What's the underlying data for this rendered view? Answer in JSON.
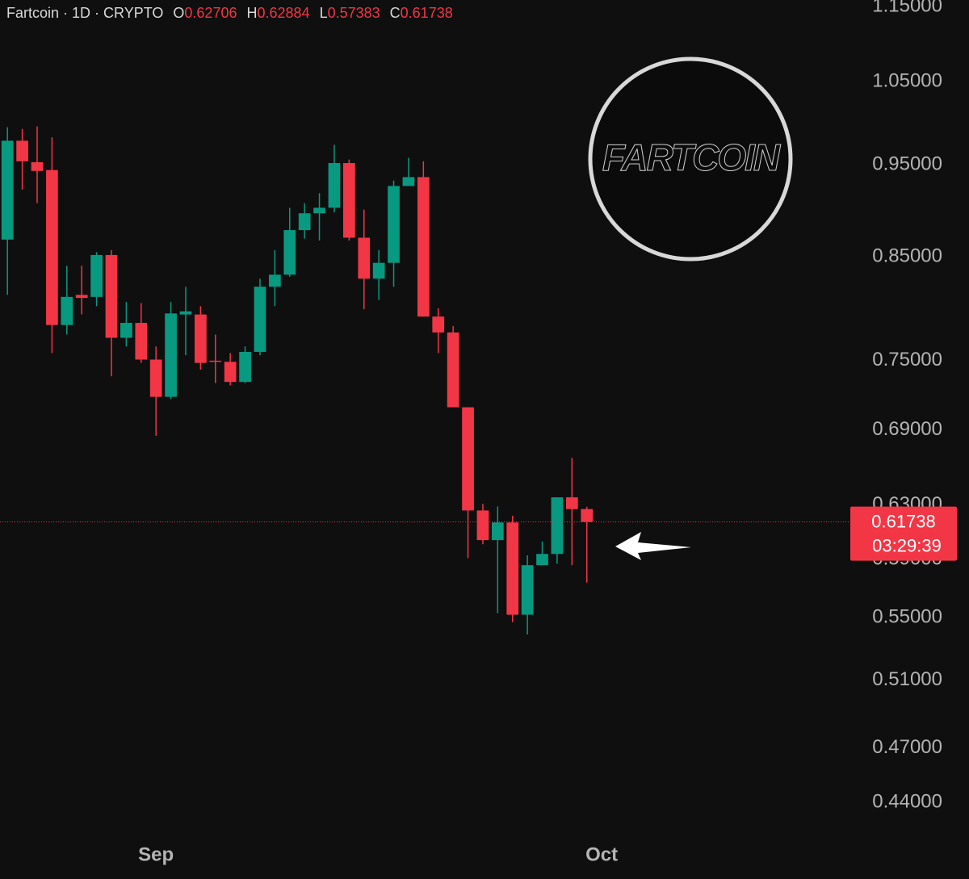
{
  "chart_data": {
    "type": "candlestick",
    "symbol": "Fartcoin · 1D · CRYPTO",
    "ohlc_labels": [
      "O",
      "H",
      "L",
      "C"
    ],
    "countdown": "03:29:39",
    "logo_text": "FARTCOIN",
    "log_y": true,
    "up_color": "#089981",
    "down_color": "#f23645",
    "open": [
      0.868,
      0.978,
      0.953,
      0.944,
      0.783,
      0.812,
      0.81,
      0.852,
      0.771,
      0.785,
      0.751,
      0.718,
      0.793,
      0.793,
      0.75,
      0.749,
      0.731,
      0.758,
      0.82,
      0.832,
      0.878,
      0.896,
      0.902,
      0.952,
      0.87,
      0.828,
      0.844,
      0.926,
      0.936,
      0.791,
      0.776,
      0.709,
      0.626,
      0.604,
      0.617,
      0.552,
      0.586,
      0.594,
      0.636,
      0.62706
    ],
    "high": [
      0.994,
      0.992,
      0.995,
      0.982,
      0.841,
      0.841,
      0.855,
      0.857,
      0.805,
      0.804,
      0.763,
      0.805,
      0.82,
      0.801,
      0.774,
      0.757,
      0.763,
      0.828,
      0.857,
      0.902,
      0.907,
      0.918,
      0.973,
      0.956,
      0.9,
      0.857,
      0.932,
      0.958,
      0.954,
      0.799,
      0.782,
      0.709,
      0.631,
      0.629,
      0.622,
      0.593,
      0.603,
      0.636,
      0.667,
      0.62884
    ],
    "low": [
      0.812,
      0.922,
      0.907,
      0.757,
      0.774,
      0.793,
      0.801,
      0.736,
      0.763,
      0.748,
      0.685,
      0.716,
      0.755,
      0.742,
      0.73,
      0.728,
      0.73,
      0.755,
      0.801,
      0.83,
      0.869,
      0.867,
      0.897,
      0.867,
      0.798,
      0.807,
      0.82,
      0.926,
      0.791,
      0.757,
      0.709,
      0.591,
      0.601,
      0.553,
      0.547,
      0.539,
      0.586,
      0.587,
      0.586,
      0.57383
    ],
    "close": [
      0.978,
      0.954,
      0.943,
      0.783,
      0.81,
      0.809,
      0.852,
      0.771,
      0.785,
      0.751,
      0.718,
      0.794,
      0.796,
      0.748,
      0.749,
      0.731,
      0.758,
      0.82,
      0.832,
      0.878,
      0.896,
      0.902,
      0.952,
      0.87,
      0.828,
      0.844,
      0.926,
      0.936,
      0.791,
      0.776,
      0.709,
      0.626,
      0.604,
      0.617,
      0.552,
      0.586,
      0.594,
      0.636,
      0.627,
      0.61738
    ],
    "xlim": [
      -0.5,
      56.3
    ],
    "xticks": [
      {
        "value": 10,
        "label": "Sep"
      },
      {
        "value": 40,
        "label": "Oct"
      }
    ],
    "ylim": [
      0.425,
      1.159
    ],
    "yticks": [
      {
        "value": 1.15,
        "label": "1.15000"
      },
      {
        "value": 1.05,
        "label": "1.05000"
      },
      {
        "value": 0.95,
        "label": "0.95000"
      },
      {
        "value": 0.85,
        "label": "0.85000"
      },
      {
        "value": 0.75,
        "label": "0.75000"
      },
      {
        "value": 0.69,
        "label": "0.69000"
      },
      {
        "value": 0.63,
        "label": "0.63000"
      },
      {
        "value": 0.59,
        "label": "0.59000"
      },
      {
        "value": 0.55,
        "label": "0.55000"
      },
      {
        "value": 0.51,
        "label": "0.51000"
      },
      {
        "value": 0.47,
        "label": "0.47000"
      },
      {
        "value": 0.44,
        "label": "0.44000"
      }
    ]
  }
}
